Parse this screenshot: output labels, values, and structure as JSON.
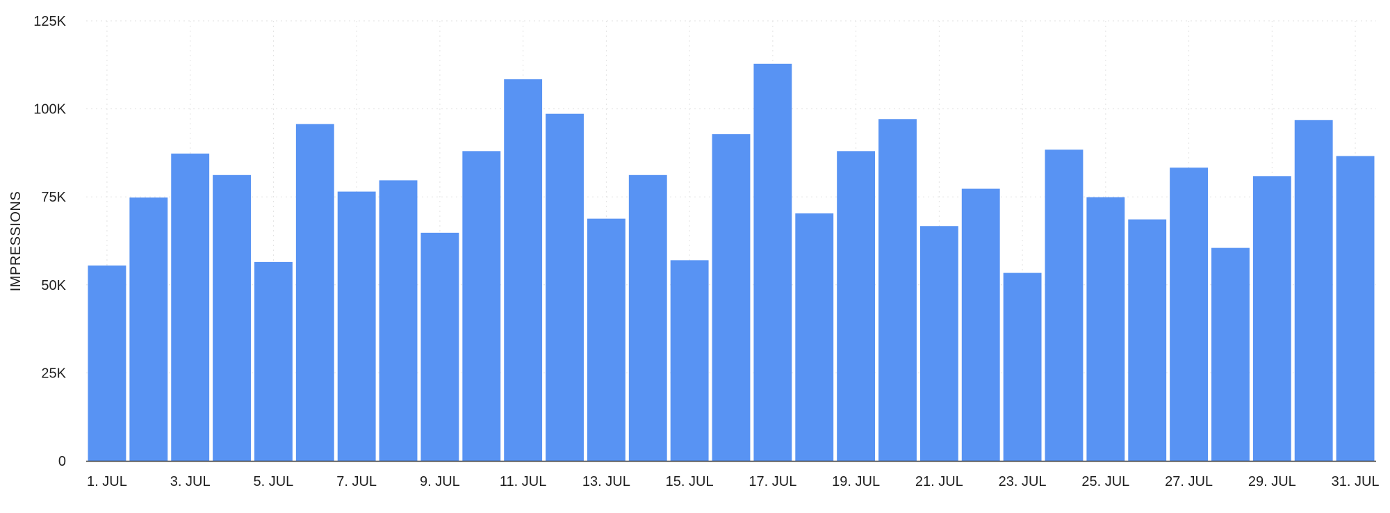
{
  "chart_data": {
    "type": "bar",
    "ylabel": "IMPRESSIONS",
    "ylim": [
      0,
      125000
    ],
    "y_ticks": [
      {
        "value": 0,
        "label": "0"
      },
      {
        "value": 25000,
        "label": "25K"
      },
      {
        "value": 50000,
        "label": "50K"
      },
      {
        "value": 75000,
        "label": "75K"
      },
      {
        "value": 100000,
        "label": "100K"
      },
      {
        "value": 125000,
        "label": "125K"
      }
    ],
    "categories": [
      "1. JUL",
      "2. JUL",
      "3. JUL",
      "4. JUL",
      "5. JUL",
      "6. JUL",
      "7. JUL",
      "8. JUL",
      "9. JUL",
      "10. JUL",
      "11. JUL",
      "12. JUL",
      "13. JUL",
      "14. JUL",
      "15. JUL",
      "16. JUL",
      "17. JUL",
      "18. JUL",
      "19. JUL",
      "20. JUL",
      "21. JUL",
      "22. JUL",
      "23. JUL",
      "24. JUL",
      "25. JUL",
      "26. JUL",
      "27. JUL",
      "28. JUL",
      "29. JUL",
      "30. JUL",
      "31. JUL"
    ],
    "x_tick_labels": [
      "1. JUL",
      "3. JUL",
      "5. JUL",
      "7. JUL",
      "9. JUL",
      "11. JUL",
      "13. JUL",
      "15. JUL",
      "17. JUL",
      "19. JUL",
      "21. JUL",
      "23. JUL",
      "25. JUL",
      "27. JUL",
      "29. JUL",
      "31. JUL"
    ],
    "values": [
      55500,
      74800,
      87300,
      81200,
      56500,
      95700,
      76500,
      79700,
      64800,
      88000,
      108400,
      98600,
      68800,
      81200,
      57000,
      92800,
      112800,
      70300,
      88000,
      97100,
      66700,
      77300,
      53400,
      88400,
      74900,
      68600,
      83300,
      60500,
      80900,
      96800,
      86600
    ],
    "bar_color": "#5893f3",
    "grid": true,
    "legend": "none"
  }
}
